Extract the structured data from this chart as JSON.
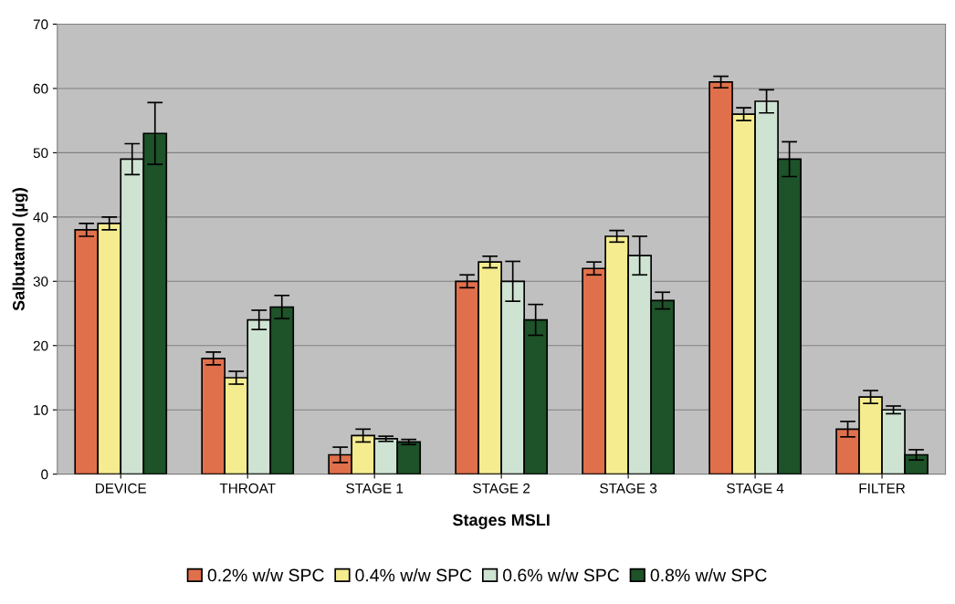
{
  "chart_data": {
    "type": "bar",
    "xlabel": "Stages MSLI",
    "ylabel": "Salbutamol (µg)",
    "categories": [
      "DEVICE",
      "THROAT",
      "STAGE 1",
      "STAGE 2",
      "STAGE 3",
      "STAGE 4",
      "FILTER"
    ],
    "series": [
      {
        "name": "0.2% w/w SPC",
        "color": "#e0704c",
        "values": [
          38,
          18,
          3,
          30,
          32,
          61,
          7
        ],
        "errors": [
          1,
          1,
          1.2,
          1,
          1,
          0.9,
          1.2
        ]
      },
      {
        "name": "0.4% w/w SPC",
        "color": "#f5ec90",
        "values": [
          39,
          15,
          6,
          33,
          37,
          56,
          12
        ],
        "errors": [
          1,
          1,
          1,
          0.9,
          0.9,
          1,
          1
        ]
      },
      {
        "name": "0.6% w/w SPC",
        "color": "#cfe3d3",
        "values": [
          49,
          24,
          5.5,
          30,
          34,
          58,
          10
        ],
        "errors": [
          2.4,
          1.5,
          0.4,
          3.1,
          3,
          1.8,
          0.6
        ]
      },
      {
        "name": "0.8% w/w SPC",
        "color": "#1e5228",
        "values": [
          53,
          26,
          5,
          24,
          27,
          49,
          3
        ],
        "errors": [
          4.8,
          1.8,
          0.4,
          2.4,
          1.3,
          2.7,
          0.8
        ]
      }
    ],
    "ylim": [
      0,
      70
    ],
    "yticks": [
      0,
      10,
      20,
      30,
      40,
      50,
      60,
      70
    ],
    "grid": "y",
    "legend": "bottom"
  }
}
